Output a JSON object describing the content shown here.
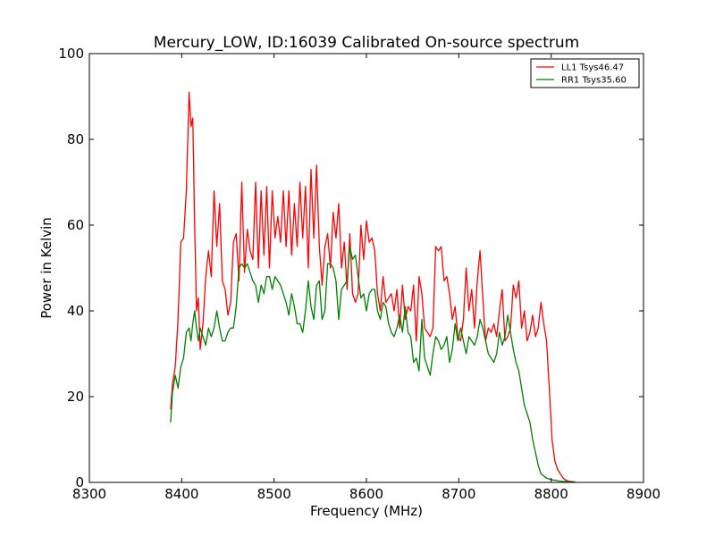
{
  "chart_data": {
    "type": "line",
    "title": "Mercury_LOW, ID:16039 Calibrated On-source spectrum",
    "xlabel": "Frequency (MHz)",
    "ylabel": "Power in Kelvin",
    "xlim": [
      8300,
      8900
    ],
    "ylim": [
      0,
      100
    ],
    "xticks": [
      "8300",
      "8400",
      "8500",
      "8600",
      "8700",
      "8800",
      "8900"
    ],
    "yticks": [
      "0",
      "20",
      "40",
      "60",
      "80",
      "100"
    ],
    "grid": false,
    "legend_position": "top-right",
    "series": [
      {
        "name": "LL1 Tsys46.47",
        "color": "#ff0000",
        "x": [
          8388,
          8390,
          8393,
          8396,
          8399,
          8402,
          8405,
          8408,
          8410,
          8412,
          8414,
          8416,
          8418,
          8420,
          8423,
          8426,
          8429,
          8432,
          8435,
          8438,
          8441,
          8444,
          8447,
          8450,
          8453,
          8456,
          8459,
          8462,
          8465,
          8468,
          8471,
          8474,
          8477,
          8480,
          8483,
          8486,
          8489,
          8492,
          8495,
          8498,
          8501,
          8504,
          8507,
          8510,
          8513,
          8516,
          8519,
          8522,
          8525,
          8528,
          8531,
          8534,
          8537,
          8540,
          8543,
          8546,
          8549,
          8552,
          8555,
          8558,
          8561,
          8564,
          8567,
          8570,
          8573,
          8576,
          8579,
          8582,
          8585,
          8588,
          8591,
          8594,
          8597,
          8600,
          8603,
          8606,
          8609,
          8612,
          8615,
          8618,
          8621,
          8624,
          8627,
          8630,
          8633,
          8636,
          8639,
          8642,
          8645,
          8648,
          8651,
          8654,
          8657,
          8660,
          8663,
          8666,
          8669,
          8672,
          8675,
          8678,
          8681,
          8684,
          8687,
          8690,
          8693,
          8696,
          8699,
          8702,
          8705,
          8708,
          8711,
          8714,
          8717,
          8720,
          8723,
          8726,
          8729,
          8732,
          8735,
          8738,
          8741,
          8744,
          8747,
          8750,
          8753,
          8756,
          8759,
          8762,
          8765,
          8768,
          8771,
          8774,
          8777,
          8780,
          8783,
          8786,
          8789,
          8792,
          8795,
          8798,
          8801,
          8804,
          8807,
          8810,
          8813,
          8816,
          8819,
          8822,
          8826
        ],
        "values": [
          17,
          23,
          27,
          38,
          56,
          57,
          68,
          91,
          83,
          85,
          60,
          40,
          43,
          31,
          37,
          48,
          54,
          48,
          68,
          55,
          65,
          47,
          45,
          39,
          42,
          56,
          58,
          47,
          70,
          49,
          59,
          54,
          52,
          70,
          50,
          68,
          53,
          69,
          50,
          68,
          57,
          62,
          56,
          68,
          55,
          68,
          53,
          65,
          55,
          70,
          57,
          69,
          50,
          73,
          57,
          74,
          55,
          46,
          55,
          58,
          50,
          63,
          57,
          65,
          50,
          56,
          45,
          58,
          44,
          42,
          44,
          60,
          52,
          61,
          56,
          57,
          54,
          44,
          40,
          48,
          42,
          43,
          44,
          40,
          45,
          36,
          46,
          38,
          41,
          40,
          46,
          33,
          48,
          44,
          36,
          35,
          34,
          36,
          55,
          54,
          55,
          47,
          48,
          44,
          38,
          41,
          34,
          33,
          38,
          50,
          40,
          45,
          36,
          47,
          54,
          43,
          33,
          36,
          35,
          37,
          34,
          40,
          45,
          33,
          34,
          36,
          46,
          43,
          47,
          36,
          40,
          33,
          35,
          39,
          34,
          36,
          42,
          37,
          33,
          22,
          10,
          5,
          3,
          2,
          1,
          0.5,
          0.3,
          0.2,
          0.1
        ]
      },
      {
        "name": "RR1 Tsys35.60",
        "color": "#008000",
        "x": [
          8388,
          8390,
          8393,
          8396,
          8399,
          8402,
          8405,
          8408,
          8410,
          8412,
          8414,
          8416,
          8418,
          8420,
          8423,
          8426,
          8429,
          8432,
          8435,
          8438,
          8441,
          8444,
          8447,
          8450,
          8453,
          8456,
          8459,
          8462,
          8465,
          8468,
          8471,
          8474,
          8477,
          8480,
          8483,
          8486,
          8489,
          8492,
          8495,
          8498,
          8501,
          8504,
          8507,
          8510,
          8513,
          8516,
          8519,
          8522,
          8525,
          8528,
          8531,
          8534,
          8537,
          8540,
          8543,
          8546,
          8549,
          8552,
          8555,
          8558,
          8561,
          8564,
          8567,
          8570,
          8573,
          8576,
          8579,
          8582,
          8585,
          8588,
          8591,
          8594,
          8597,
          8600,
          8603,
          8606,
          8609,
          8612,
          8615,
          8618,
          8621,
          8624,
          8627,
          8630,
          8633,
          8636,
          8639,
          8642,
          8645,
          8648,
          8651,
          8654,
          8657,
          8660,
          8663,
          8666,
          8669,
          8672,
          8675,
          8678,
          8681,
          8684,
          8687,
          8690,
          8693,
          8696,
          8699,
          8702,
          8705,
          8708,
          8711,
          8714,
          8717,
          8720,
          8723,
          8726,
          8729,
          8732,
          8735,
          8738,
          8741,
          8744,
          8747,
          8750,
          8753,
          8756,
          8759,
          8762,
          8765,
          8768,
          8771,
          8774,
          8777,
          8780,
          8783,
          8786,
          8789,
          8792,
          8795,
          8798,
          8801,
          8804,
          8807,
          8810,
          8813,
          8816,
          8819,
          8822,
          8826
        ],
        "values": [
          14,
          21,
          25,
          22,
          27,
          29,
          35,
          36,
          33,
          37,
          40,
          36,
          33,
          36,
          34,
          32,
          36,
          34,
          36,
          40,
          36,
          33,
          33,
          35,
          36,
          36,
          41,
          50,
          51,
          50,
          51,
          49,
          47,
          46,
          42,
          46,
          44,
          48,
          48,
          45,
          48,
          47,
          46,
          44,
          42,
          39,
          44,
          41,
          37,
          37,
          35,
          40,
          47,
          41,
          38,
          46,
          47,
          38,
          40,
          51,
          51,
          50,
          47,
          38,
          45,
          46,
          47,
          55,
          52,
          53,
          48,
          43,
          44,
          40,
          44,
          45,
          45,
          40,
          38,
          42,
          41,
          37,
          35,
          34,
          36,
          39,
          35,
          41,
          35,
          34,
          28,
          29,
          26,
          38,
          29,
          27,
          25,
          30,
          34,
          33,
          31,
          32,
          34,
          28,
          31,
          37,
          33,
          36,
          33,
          30,
          34,
          33,
          32,
          34,
          38,
          36,
          33,
          30,
          29,
          28,
          30,
          35,
          32,
          34,
          39,
          35,
          31,
          28,
          26,
          22,
          18,
          16,
          14,
          10,
          7,
          4,
          2,
          1.5,
          1,
          0.8,
          0.6,
          0.5,
          0.4,
          0.3,
          0.2,
          0.2,
          0.1,
          0.1,
          0.1
        ]
      }
    ]
  }
}
